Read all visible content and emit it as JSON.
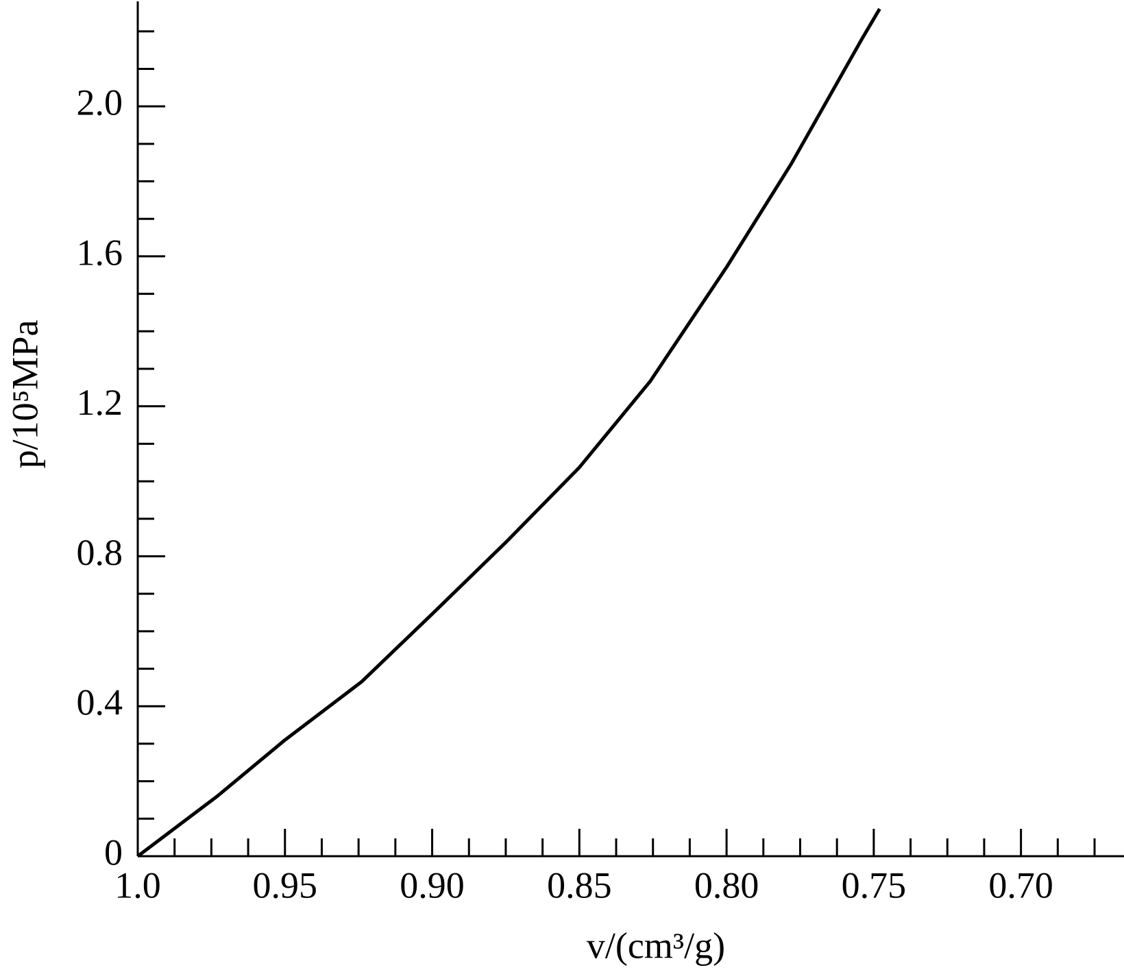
{
  "chart_data": {
    "type": "line",
    "xlabel": "v/(cm³/g)",
    "ylabel": "p/10⁵MPa",
    "x": [
      1.0,
      0.973,
      0.95,
      0.924,
      0.9,
      0.875,
      0.85,
      0.826,
      0.8,
      0.778,
      0.754,
      0.748
    ],
    "series": [
      {
        "color": "#000000",
        "values": [
          0,
          0.16,
          0.31,
          0.465,
          0.646,
          0.837,
          1.037,
          1.266,
          1.571,
          1.847,
          2.18,
          2.26
        ]
      }
    ],
    "xlim": [
      1.0,
      0.665
    ],
    "ylim": [
      0,
      2.28
    ],
    "xticks": [
      {
        "value": 1.0,
        "label": "1.0"
      },
      0.95,
      {
        "value": 0.9,
        "label": "0.90"
      },
      0.85,
      {
        "value": 0.8,
        "label": "0.80"
      },
      0.75,
      {
        "value": 0.7,
        "label": "0.70"
      }
    ],
    "yticks": [
      0,
      0.4,
      0.8,
      1.2,
      1.6,
      {
        "value": 2.0,
        "label": "2.0"
      }
    ],
    "xminorticks": [
      0.9875,
      0.975,
      0.9625,
      0.9375,
      0.925,
      0.9125,
      0.8875,
      0.875,
      0.8625,
      0.8375,
      0.825,
      0.8125,
      0.7875,
      0.775,
      0.7625,
      0.7375,
      0.725,
      0.7125,
      0.6875,
      0.675
    ],
    "yminorticks": [
      0.1,
      0.2,
      0.3,
      0.5,
      0.6,
      0.7,
      0.9,
      1.0,
      1.1,
      1.3,
      1.4,
      1.5,
      1.7,
      1.8,
      1.9,
      2.1,
      2.2
    ]
  }
}
